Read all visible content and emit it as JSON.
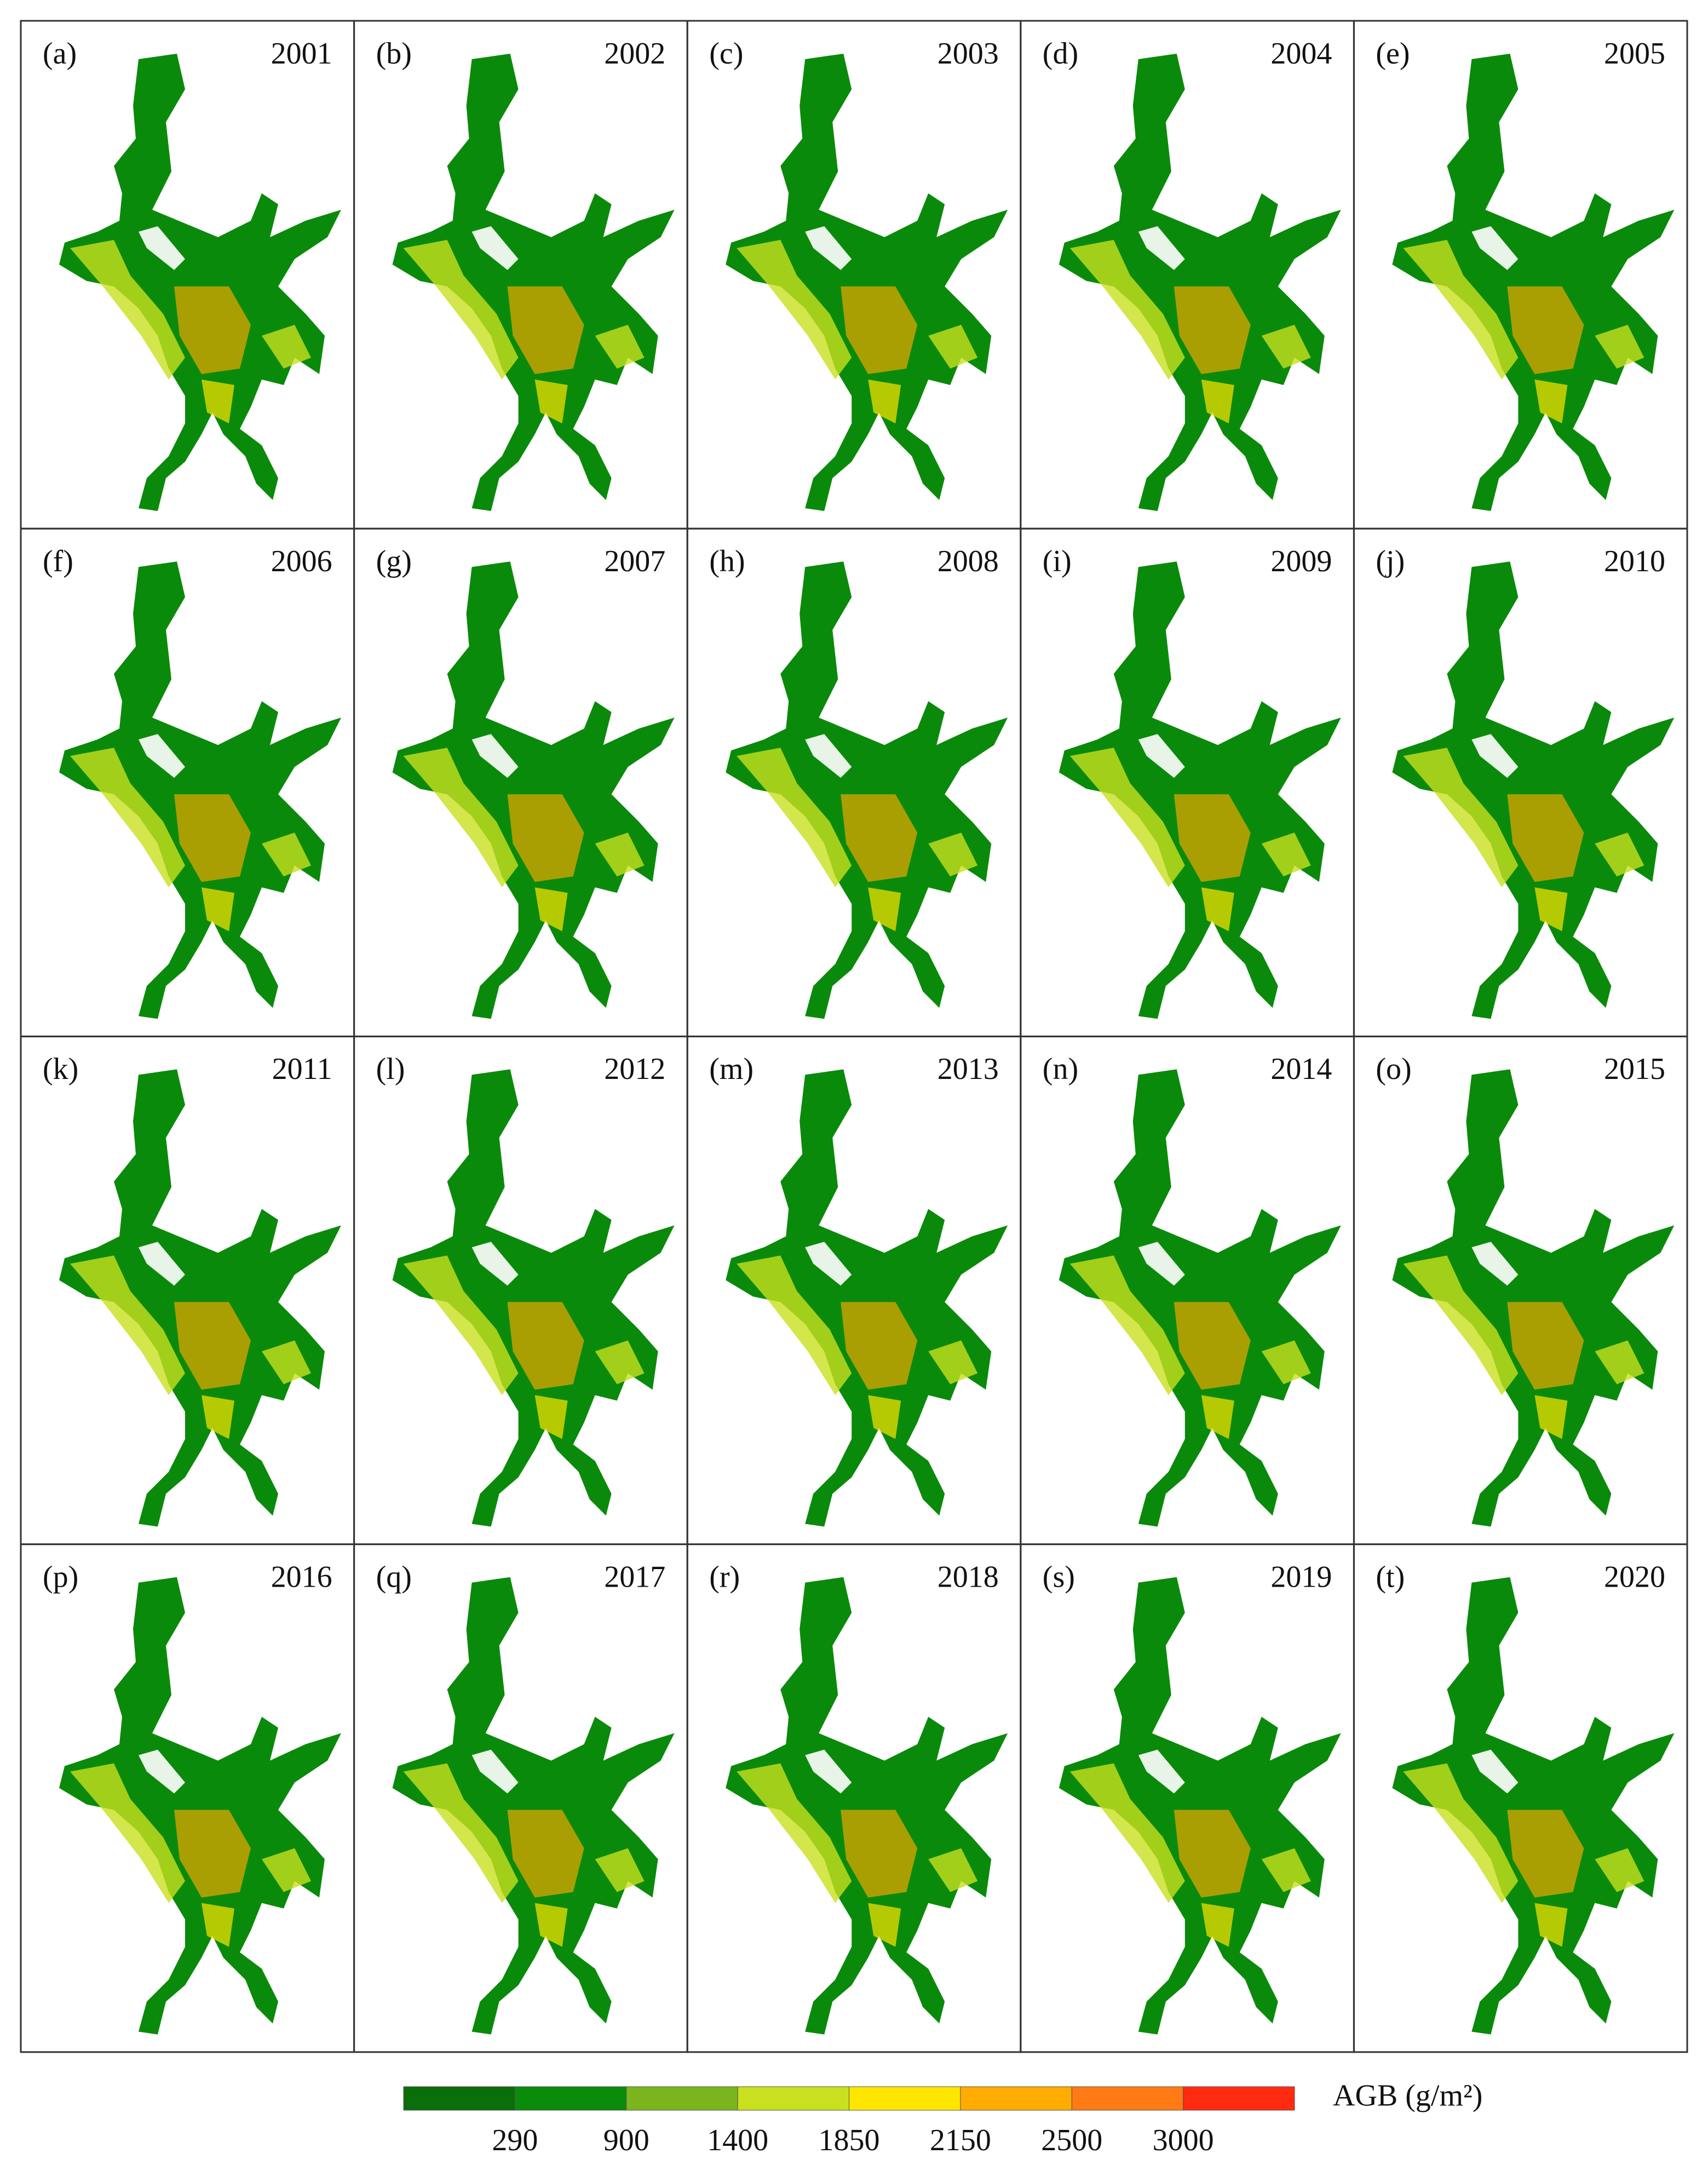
{
  "panels": [
    {
      "label": "(a)",
      "year": "2001"
    },
    {
      "label": "(b)",
      "year": "2002"
    },
    {
      "label": "(c)",
      "year": "2003"
    },
    {
      "label": "(d)",
      "year": "2004"
    },
    {
      "label": "(e)",
      "year": "2005"
    },
    {
      "label": "(f)",
      "year": "2006"
    },
    {
      "label": "(g)",
      "year": "2007"
    },
    {
      "label": "(h)",
      "year": "2008"
    },
    {
      "label": "(i)",
      "year": "2009"
    },
    {
      "label": "(j)",
      "year": "2010"
    },
    {
      "label": "(k)",
      "year": "2011"
    },
    {
      "label": "(l)",
      "year": "2012"
    },
    {
      "label": "(m)",
      "year": "2013"
    },
    {
      "label": "(n)",
      "year": "2014"
    },
    {
      "label": "(o)",
      "year": "2015"
    },
    {
      "label": "(p)",
      "year": "2016"
    },
    {
      "label": "(q)",
      "year": "2017"
    },
    {
      "label": "(r)",
      "year": "2018"
    },
    {
      "label": "(s)",
      "year": "2019"
    },
    {
      "label": "(t)",
      "year": "2020"
    }
  ],
  "legend": {
    "label": "AGB (g/m²)",
    "colors": [
      "#0a6e0a",
      "#0a8c0a",
      "#7ab51d",
      "#c8e01e",
      "#ffe600",
      "#ffab00",
      "#ff7a14",
      "#ff2a10"
    ],
    "ticks": [
      290,
      900,
      1400,
      1850,
      2150,
      2500,
      3000
    ]
  }
}
